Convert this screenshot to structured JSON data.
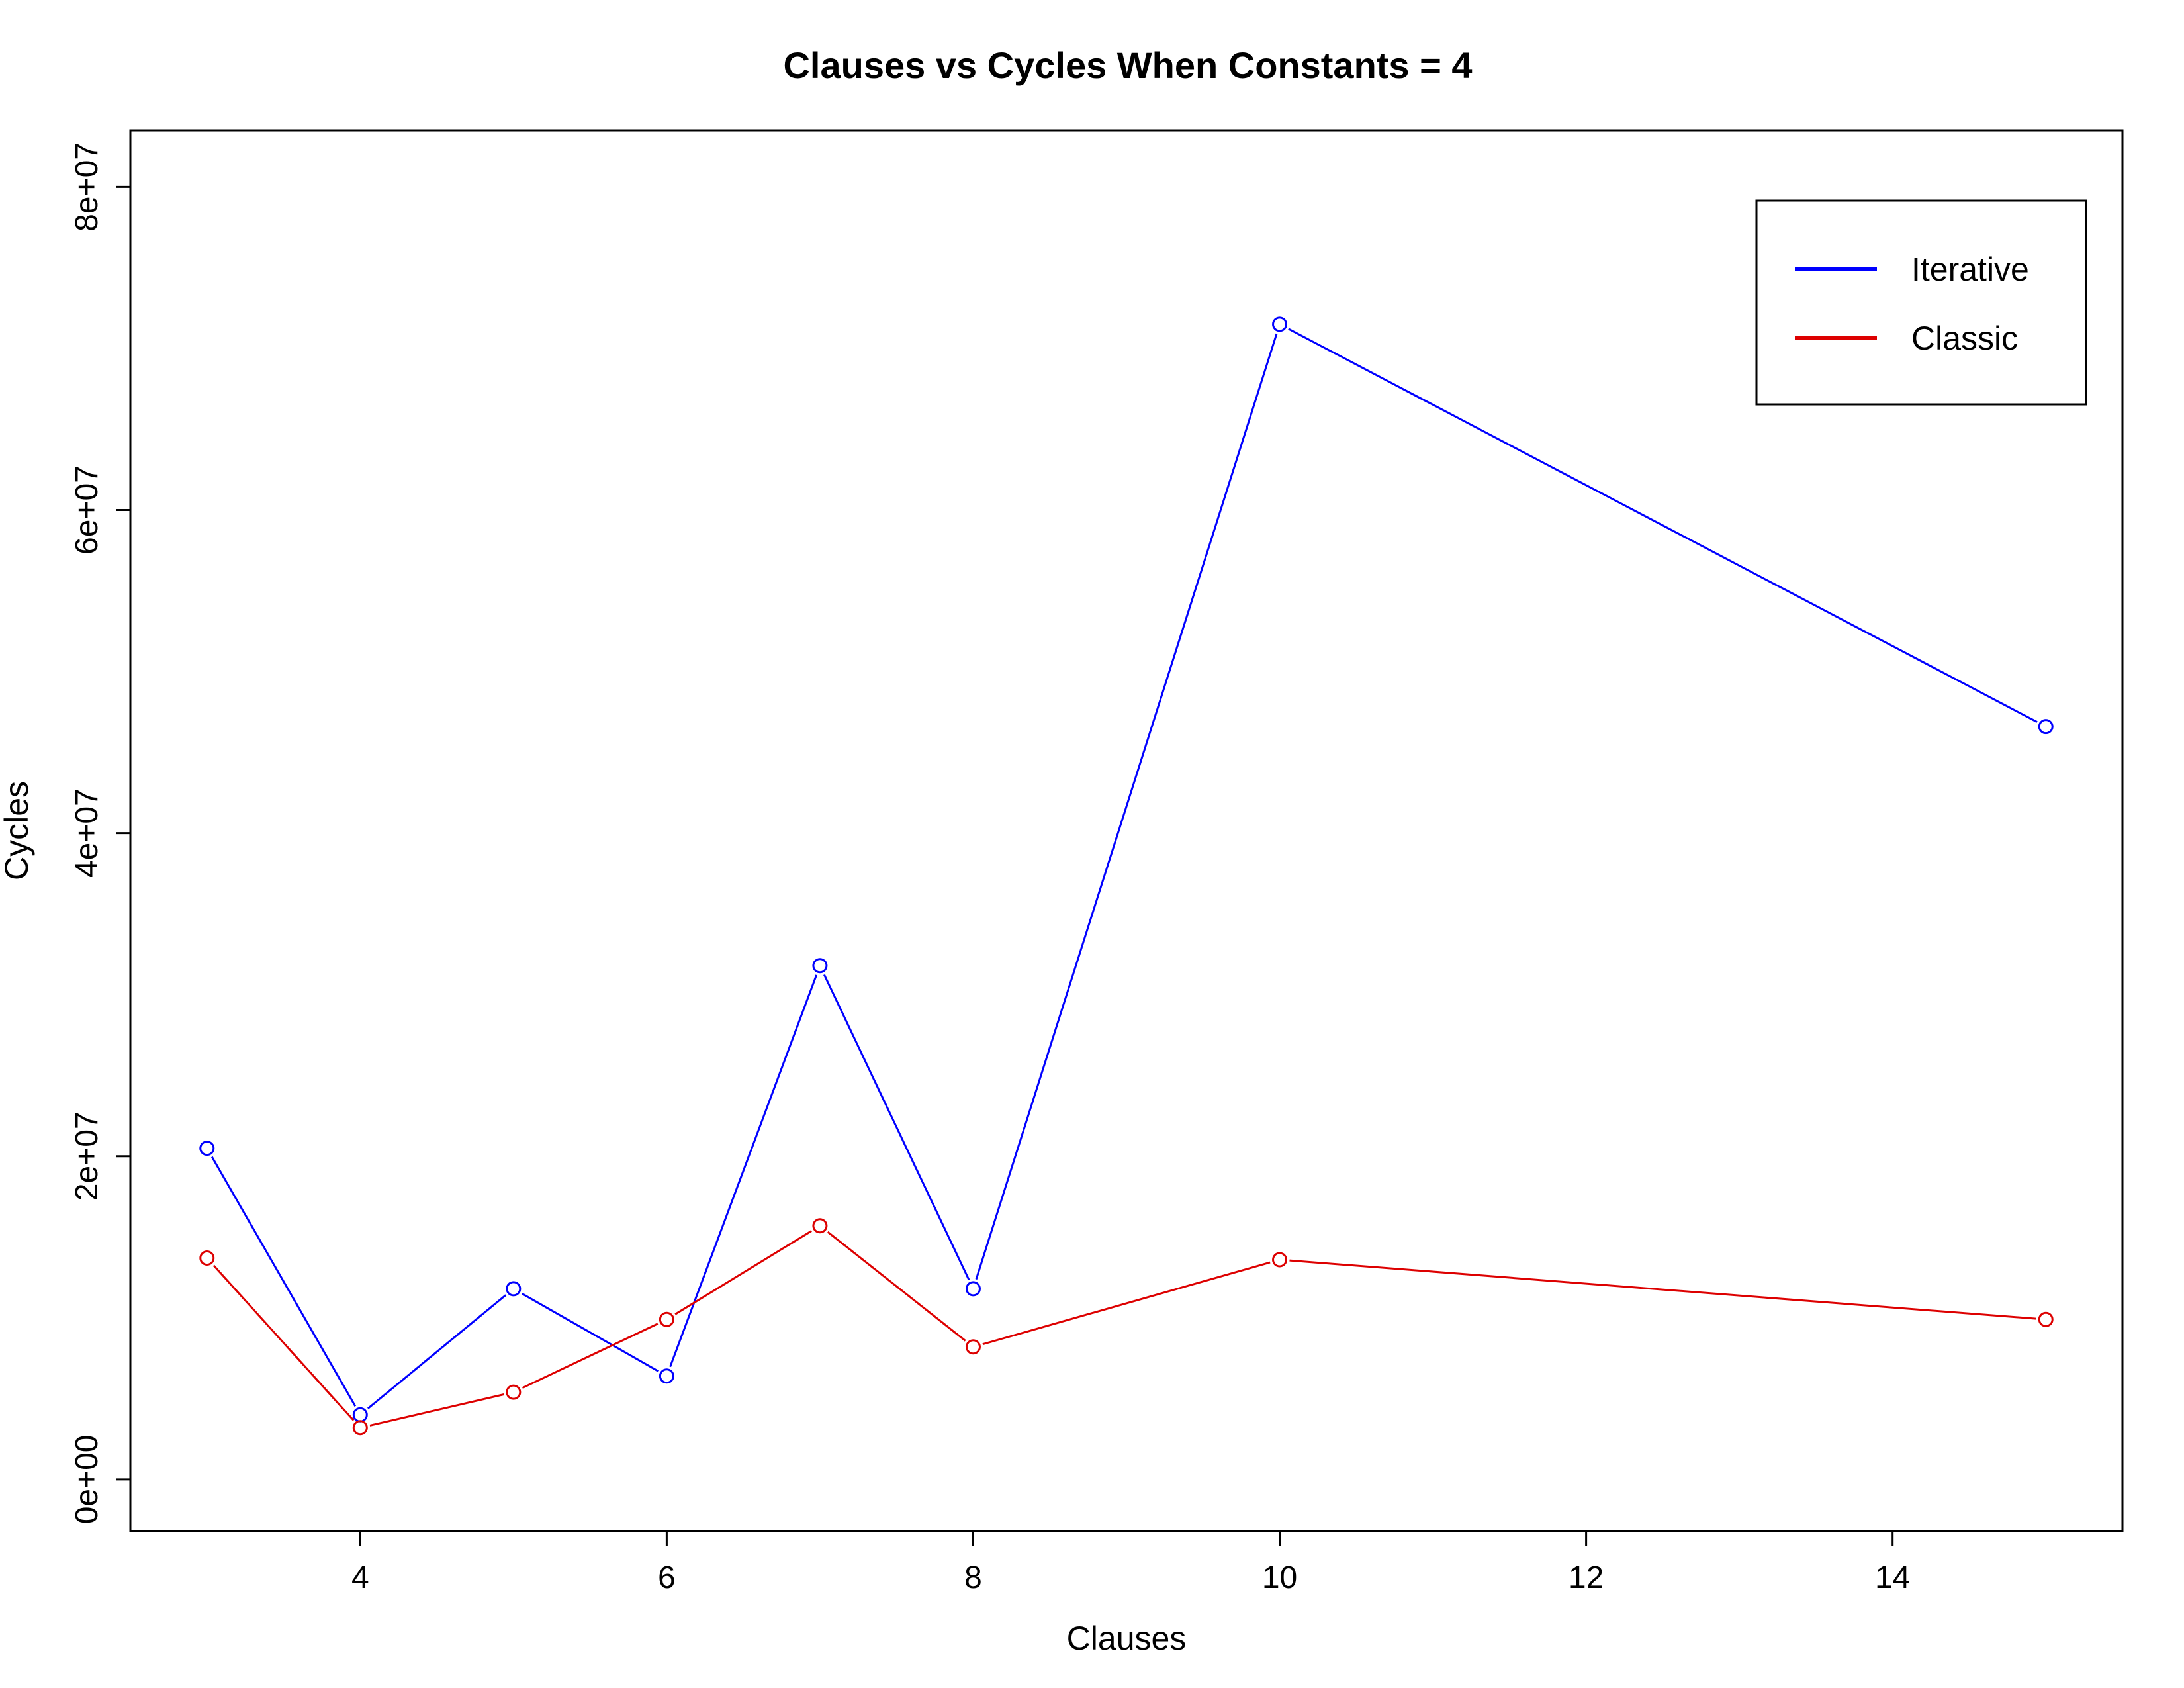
{
  "chart_data": {
    "type": "line",
    "title": "Clauses vs Cycles When Constants = 4",
    "xlabel": "Clauses",
    "ylabel": "Cycles",
    "x": [
      3,
      4,
      5,
      6,
      7,
      8,
      10,
      15
    ],
    "xlim": [
      2.5,
      15.5
    ],
    "ylim": [
      -3200000,
      83500000
    ],
    "xticks": [
      4,
      6,
      8,
      10,
      12,
      14
    ],
    "xtick_labels": [
      "4",
      "6",
      "8",
      "10",
      "12",
      "14"
    ],
    "yticks": [
      0,
      20000000,
      40000000,
      60000000,
      80000000
    ],
    "ytick_labels": [
      "0e+00",
      "2e+07",
      "4e+07",
      "6e+07",
      "8e+07"
    ],
    "grid": false,
    "legend_position": "top-right",
    "series": [
      {
        "name": "Iterative",
        "color": "#0000ff",
        "values": [
          20500000,
          4000000,
          11800000,
          6400000,
          31800000,
          11800000,
          71500000,
          46600000
        ]
      },
      {
        "name": "Classic",
        "color": "#dd0000",
        "values": [
          13700000,
          3200000,
          5400000,
          9900000,
          15700000,
          8200000,
          13600000,
          9900000
        ]
      }
    ]
  }
}
